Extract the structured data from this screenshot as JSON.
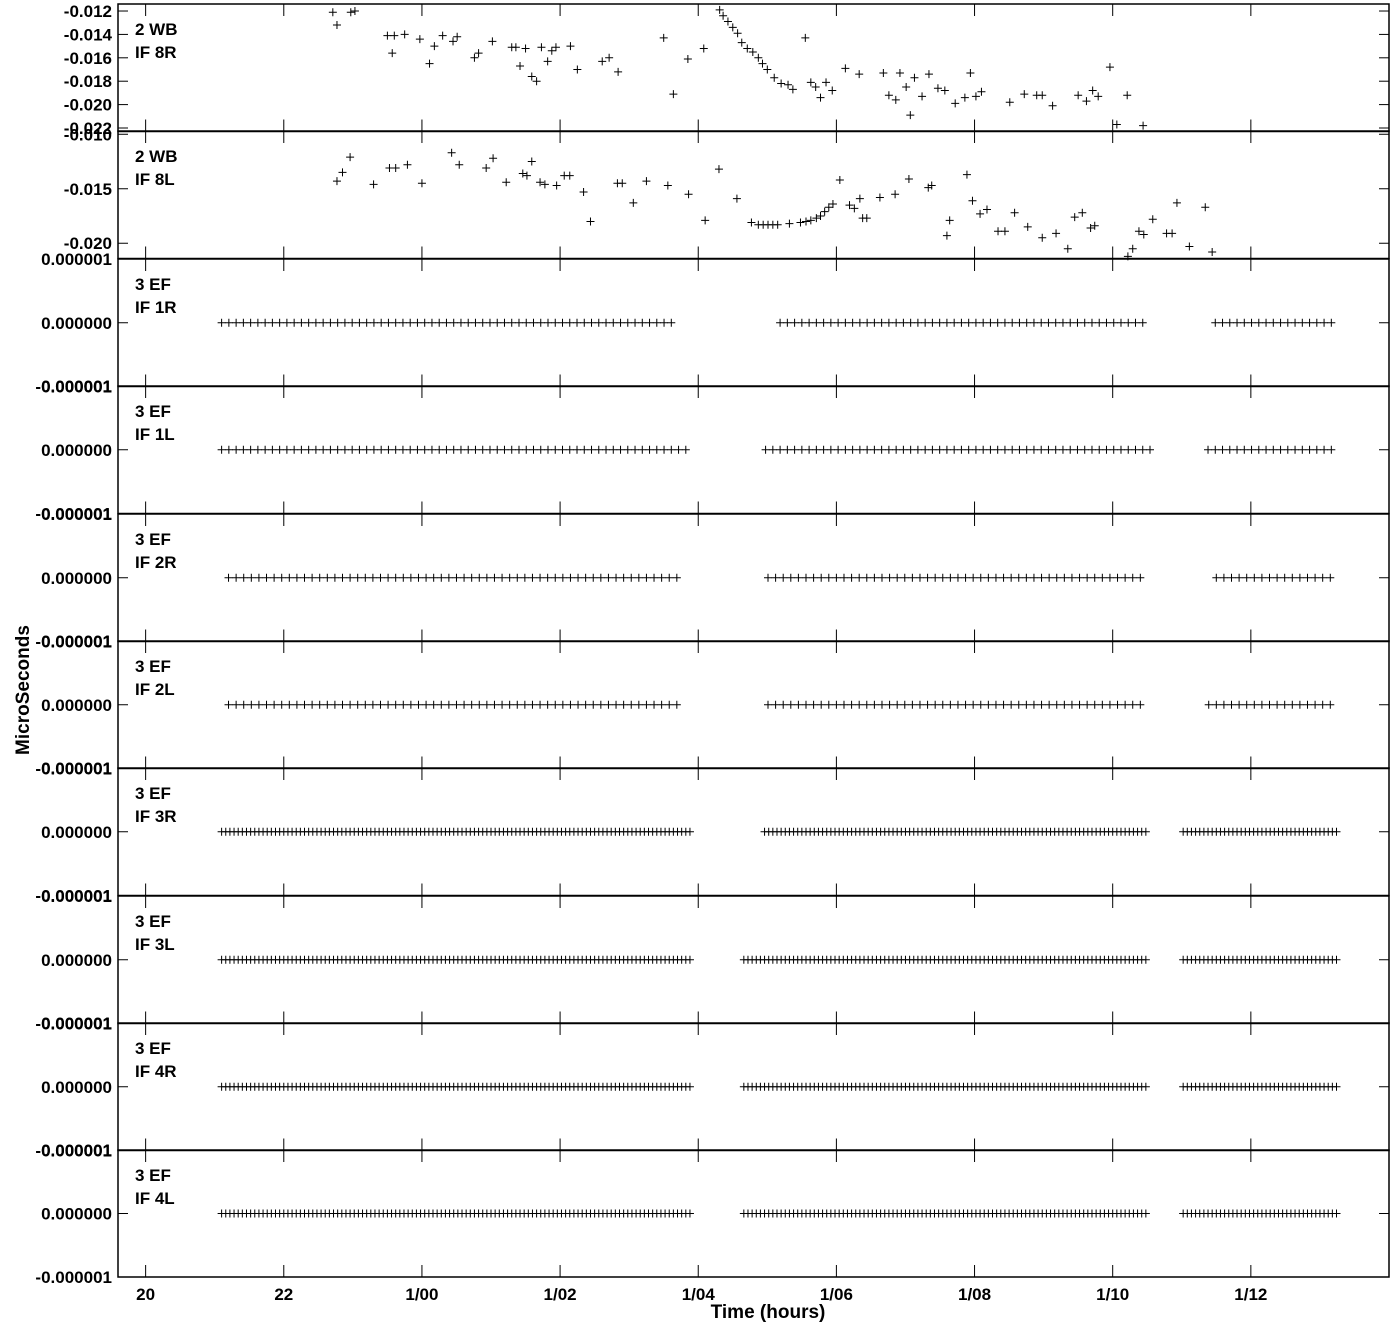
{
  "chart_data": {
    "type": "scatter",
    "xlabel": "Time (hours)",
    "ylabel": "MicroSeconds",
    "x_ticks": [
      "20",
      "22",
      "1/00",
      "1/02",
      "1/04",
      "1/06",
      "1/08",
      "1/10",
      "1/12"
    ],
    "x_tick_hours": [
      20,
      22,
      24,
      26,
      28,
      30,
      32,
      34,
      36
    ],
    "xlim": [
      19.6,
      38.0
    ],
    "grid": false,
    "legend": "none",
    "panels": [
      {
        "id": "2wb-if8r",
        "label": [
          "2 WB",
          "IF 8R"
        ],
        "ylim": [
          -0.0223,
          -0.0114
        ],
        "y_ticks": [
          "-0.012",
          "-0.014",
          "-0.016",
          "-0.018",
          "-0.020",
          "-0.022"
        ],
        "y_tick_values": [
          -0.012,
          -0.014,
          -0.016,
          -0.018,
          -0.02,
          -0.022
        ],
        "points": [
          [
            22.71,
            -0.0121
          ],
          [
            22.77,
            -0.0132
          ],
          [
            22.97,
            -0.0121
          ],
          [
            23.03,
            -0.012
          ],
          [
            23.5,
            -0.0141
          ],
          [
            23.57,
            -0.0156
          ],
          [
            23.6,
            -0.0141
          ],
          [
            23.75,
            -0.014
          ],
          [
            23.97,
            -0.0144
          ],
          [
            24.11,
            -0.0165
          ],
          [
            24.18,
            -0.015
          ],
          [
            24.3,
            -0.0141
          ],
          [
            24.45,
            -0.0146
          ],
          [
            24.51,
            -0.0142
          ],
          [
            24.76,
            -0.016
          ],
          [
            24.82,
            -0.0156
          ],
          [
            25.02,
            -0.0146
          ],
          [
            25.3,
            -0.0151
          ],
          [
            25.36,
            -0.0151
          ],
          [
            25.42,
            -0.0167
          ],
          [
            25.5,
            -0.0152
          ],
          [
            25.59,
            -0.0176
          ],
          [
            25.66,
            -0.018
          ],
          [
            25.73,
            -0.0151
          ],
          [
            25.82,
            -0.0163
          ],
          [
            25.88,
            -0.0154
          ],
          [
            25.94,
            -0.0151
          ],
          [
            26.15,
            -0.015
          ],
          [
            26.25,
            -0.017
          ],
          [
            26.61,
            -0.0163
          ],
          [
            26.71,
            -0.016
          ],
          [
            26.84,
            -0.0172
          ],
          [
            27.5,
            -0.0143
          ],
          [
            27.64,
            -0.0191
          ],
          [
            27.85,
            -0.0161
          ],
          [
            28.08,
            -0.0152
          ],
          [
            28.31,
            -0.0119
          ],
          [
            28.36,
            -0.0124
          ],
          [
            28.43,
            -0.0129
          ],
          [
            28.5,
            -0.0134
          ],
          [
            28.57,
            -0.0139
          ],
          [
            28.63,
            -0.0147
          ],
          [
            28.71,
            -0.0152
          ],
          [
            28.79,
            -0.0155
          ],
          [
            28.87,
            -0.016
          ],
          [
            28.93,
            -0.0165
          ],
          [
            29.0,
            -0.017
          ],
          [
            29.1,
            -0.0177
          ],
          [
            29.2,
            -0.0182
          ],
          [
            29.3,
            -0.0183
          ],
          [
            29.37,
            -0.0187
          ],
          [
            29.55,
            -0.0143
          ],
          [
            29.63,
            -0.0181
          ],
          [
            29.7,
            -0.0185
          ],
          [
            29.77,
            -0.0194
          ],
          [
            29.85,
            -0.0181
          ],
          [
            29.94,
            -0.0188
          ],
          [
            30.13,
            -0.0169
          ],
          [
            30.33,
            -0.0174
          ],
          [
            30.68,
            -0.0173
          ],
          [
            30.76,
            -0.0192
          ],
          [
            30.86,
            -0.0196
          ],
          [
            30.92,
            -0.0173
          ],
          [
            31.01,
            -0.0185
          ],
          [
            31.07,
            -0.0209
          ],
          [
            31.13,
            -0.0177
          ],
          [
            31.24,
            -0.0193
          ],
          [
            31.34,
            -0.0174
          ],
          [
            31.47,
            -0.0186
          ],
          [
            31.57,
            -0.0188
          ],
          [
            31.72,
            -0.0199
          ],
          [
            31.86,
            -0.0194
          ],
          [
            31.94,
            -0.0173
          ],
          [
            32.02,
            -0.0193
          ],
          [
            32.1,
            -0.0189
          ],
          [
            32.51,
            -0.0198
          ],
          [
            32.72,
            -0.0191
          ],
          [
            32.9,
            -0.0192
          ],
          [
            32.98,
            -0.0192
          ],
          [
            33.13,
            -0.0201
          ],
          [
            33.5,
            -0.0192
          ],
          [
            33.62,
            -0.0197
          ],
          [
            33.71,
            -0.0188
          ],
          [
            33.79,
            -0.0193
          ],
          [
            33.96,
            -0.0168
          ],
          [
            34.06,
            -0.0217
          ],
          [
            34.21,
            -0.0192
          ],
          [
            34.44,
            -0.0218
          ]
        ]
      },
      {
        "id": "2wb-if8l",
        "label": [
          "2 WB",
          "IF 8L"
        ],
        "ylim": [
          -0.0214,
          -0.0097
        ],
        "y_ticks": [
          "-0.010",
          "-0.015",
          "-0.020"
        ],
        "y_tick_values": [
          -0.01,
          -0.015,
          -0.02
        ],
        "points": [
          [
            22.77,
            -0.0143
          ],
          [
            22.85,
            -0.0135
          ],
          [
            22.96,
            -0.0121
          ],
          [
            23.3,
            -0.0146
          ],
          [
            23.53,
            -0.0131
          ],
          [
            23.62,
            -0.0131
          ],
          [
            23.79,
            -0.0128
          ],
          [
            24.0,
            -0.0145
          ],
          [
            24.43,
            -0.0117
          ],
          [
            24.54,
            -0.0128
          ],
          [
            24.93,
            -0.0131
          ],
          [
            25.03,
            -0.0122
          ],
          [
            25.22,
            -0.0144
          ],
          [
            25.46,
            -0.0136
          ],
          [
            25.52,
            -0.0138
          ],
          [
            25.59,
            -0.0125
          ],
          [
            25.71,
            -0.0144
          ],
          [
            25.78,
            -0.0146
          ],
          [
            25.95,
            -0.0147
          ],
          [
            26.06,
            -0.0138
          ],
          [
            26.14,
            -0.0138
          ],
          [
            26.34,
            -0.0153
          ],
          [
            26.44,
            -0.018
          ],
          [
            26.83,
            -0.0145
          ],
          [
            26.9,
            -0.0145
          ],
          [
            27.06,
            -0.0163
          ],
          [
            27.25,
            -0.0143
          ],
          [
            27.56,
            -0.0147
          ],
          [
            27.86,
            -0.0155
          ],
          [
            28.1,
            -0.0179
          ],
          [
            28.3,
            -0.0132
          ],
          [
            28.56,
            -0.0159
          ],
          [
            28.77,
            -0.0181
          ],
          [
            28.87,
            -0.0183
          ],
          [
            28.94,
            -0.0183
          ],
          [
            29.01,
            -0.0183
          ],
          [
            29.08,
            -0.0183
          ],
          [
            29.15,
            -0.0183
          ],
          [
            29.32,
            -0.0182
          ],
          [
            29.48,
            -0.0181
          ],
          [
            29.56,
            -0.018
          ],
          [
            29.63,
            -0.0179
          ],
          [
            29.71,
            -0.0177
          ],
          [
            29.77,
            -0.0175
          ],
          [
            29.83,
            -0.0171
          ],
          [
            29.89,
            -0.0167
          ],
          [
            29.95,
            -0.0164
          ],
          [
            30.05,
            -0.0142
          ],
          [
            30.19,
            -0.0165
          ],
          [
            30.26,
            -0.0168
          ],
          [
            30.34,
            -0.0159
          ],
          [
            30.38,
            -0.0177
          ],
          [
            30.44,
            -0.0177
          ],
          [
            30.63,
            -0.0158
          ],
          [
            30.85,
            -0.0155
          ],
          [
            31.05,
            -0.0141
          ],
          [
            31.33,
            -0.0149
          ],
          [
            31.38,
            -0.0147
          ],
          [
            31.6,
            -0.0193
          ],
          [
            31.64,
            -0.0179
          ],
          [
            31.89,
            -0.0137
          ],
          [
            31.97,
            -0.0161
          ],
          [
            32.08,
            -0.0173
          ],
          [
            32.18,
            -0.0169
          ],
          [
            32.34,
            -0.0189
          ],
          [
            32.44,
            -0.0189
          ],
          [
            32.58,
            -0.0172
          ],
          [
            32.77,
            -0.0185
          ],
          [
            32.98,
            -0.0195
          ],
          [
            33.18,
            -0.0191
          ],
          [
            33.35,
            -0.0205
          ],
          [
            33.45,
            -0.0176
          ],
          [
            33.56,
            -0.0172
          ],
          [
            33.68,
            -0.0186
          ],
          [
            33.74,
            -0.0184
          ],
          [
            34.22,
            -0.0212
          ],
          [
            34.29,
            -0.0205
          ],
          [
            34.38,
            -0.0189
          ],
          [
            34.45,
            -0.0192
          ],
          [
            34.58,
            -0.0178
          ],
          [
            34.78,
            -0.0191
          ],
          [
            34.86,
            -0.0191
          ],
          [
            34.93,
            -0.0163
          ],
          [
            35.11,
            -0.0203
          ],
          [
            35.34,
            -0.0167
          ],
          [
            35.44,
            -0.0208
          ]
        ]
      },
      {
        "id": "3ef-if1r",
        "label": [
          "3 EF",
          "IF 1R"
        ],
        "ylim": [
          -1e-06,
          1e-06
        ],
        "y_ticks": [
          "-0.000001",
          "0.000000",
          "0.000001"
        ],
        "y_tick_values": [
          -1e-06,
          0,
          1e-06
        ],
        "value": 0,
        "t_start": 21.1,
        "t_end": 37.25,
        "gaps": [
          [
            27.7,
            29.1
          ],
          [
            34.5,
            35.4
          ]
        ],
        "step": 0.105
      },
      {
        "id": "3ef-if1l",
        "label": [
          "3 EF",
          "IF 1L"
        ],
        "ylim": [
          -1e-06,
          1e-06
        ],
        "y_ticks": [
          "-0.000001",
          "0.000000",
          "0.000001"
        ],
        "y_tick_values": [
          -1e-06,
          0,
          1e-06
        ],
        "value": 0,
        "t_start": 21.1,
        "t_end": 37.25,
        "gaps": [
          [
            27.9,
            28.9
          ],
          [
            34.6,
            35.3
          ]
        ],
        "step": 0.105
      },
      {
        "id": "3ef-if2r",
        "label": [
          "3 EF",
          "IF 2R"
        ],
        "ylim": [
          -1e-06,
          1e-06
        ],
        "y_ticks": [
          "-0.000001",
          "0.000000",
          "0.000001"
        ],
        "y_tick_values": [
          -1e-06,
          0,
          1e-06
        ],
        "value": 0,
        "t_start": 21.2,
        "t_end": 37.25,
        "gaps": [
          [
            27.7,
            28.9
          ],
          [
            34.4,
            35.4
          ]
        ],
        "step": 0.11
      },
      {
        "id": "3ef-if2l",
        "label": [
          "3 EF",
          "IF 2L"
        ],
        "ylim": [
          -1e-06,
          1e-06
        ],
        "y_ticks": [
          "-0.000001",
          "0.000000",
          "0.000001"
        ],
        "y_tick_values": [
          -1e-06,
          0,
          1e-06
        ],
        "value": 0,
        "t_start": 21.2,
        "t_end": 37.15,
        "gaps": [
          [
            27.7,
            28.9
          ],
          [
            34.4,
            35.3
          ]
        ],
        "step": 0.11
      },
      {
        "id": "3ef-if3r",
        "label": [
          "3 EF",
          "IF 3R"
        ],
        "ylim": [
          -1e-06,
          1e-06
        ],
        "y_ticks": [
          "-0.000001",
          "0.000000",
          "0.000001"
        ],
        "y_tick_values": [
          -1e-06,
          0,
          1e-06
        ],
        "value": 0,
        "t_start": 21.1,
        "t_end": 37.25,
        "gaps": [
          [
            27.9,
            28.9
          ],
          [
            34.5,
            35.0
          ]
        ],
        "step": 0.06
      },
      {
        "id": "3ef-if3l",
        "label": [
          "3 EF",
          "IF 3L"
        ],
        "ylim": [
          -1e-06,
          1e-06
        ],
        "y_ticks": [
          "-0.000001",
          "0.000000",
          "0.000001"
        ],
        "y_tick_values": [
          -1e-06,
          0,
          1e-06
        ],
        "value": 0,
        "t_start": 21.1,
        "t_end": 37.25,
        "gaps": [
          [
            27.9,
            28.6
          ],
          [
            34.5,
            35.0
          ]
        ],
        "step": 0.06
      },
      {
        "id": "3ef-if4r",
        "label": [
          "3 EF",
          "IF 4R"
        ],
        "ylim": [
          -1e-06,
          1e-06
        ],
        "y_ticks": [
          "-0.000001",
          "0.000000",
          "0.000001"
        ],
        "y_tick_values": [
          -1e-06,
          0,
          1e-06
        ],
        "value": 0,
        "t_start": 21.1,
        "t_end": 37.25,
        "gaps": [
          [
            27.9,
            28.6
          ],
          [
            34.5,
            35.0
          ]
        ],
        "step": 0.06
      },
      {
        "id": "3ef-if4l",
        "label": [
          "3 EF",
          "IF 4L"
        ],
        "ylim": [
          -1e-06,
          1e-06
        ],
        "y_ticks": [
          "-0.000001",
          "0.000000",
          "0.000001"
        ],
        "y_tick_values": [
          -1e-06,
          0,
          1e-06
        ],
        "value": 0,
        "t_start": 21.1,
        "t_end": 37.25,
        "gaps": [
          [
            27.9,
            28.6
          ],
          [
            34.5,
            35.0
          ]
        ],
        "step": 0.06
      }
    ]
  }
}
